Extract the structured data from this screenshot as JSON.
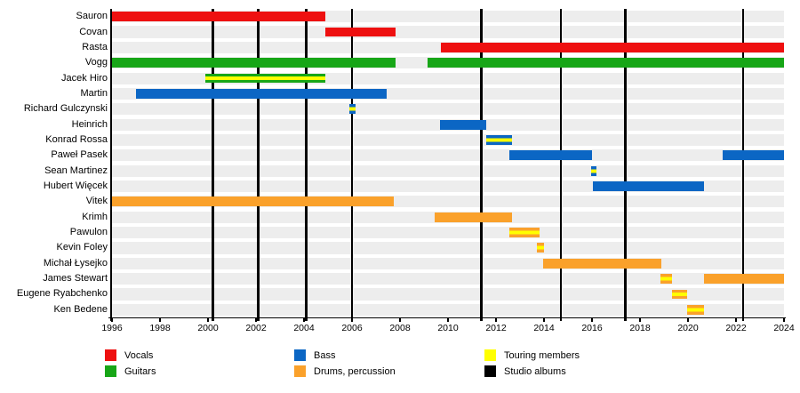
{
  "chart_data": {
    "type": "timeline",
    "description": "Band members timeline (Gantt-style), roles by color, touring members striped yellow, studio albums as vertical black lines",
    "x_axis": {
      "min": 1996,
      "max": 2024,
      "tick_interval": 2,
      "ticks": [
        1996,
        1998,
        2000,
        2002,
        2004,
        2006,
        2008,
        2010,
        2012,
        2014,
        2016,
        2018,
        2020,
        2022,
        2024
      ]
    },
    "colors": {
      "vocals": "#ee1010",
      "guitars": "#17a617",
      "bass": "#0b66c4",
      "drums": "#faa12b",
      "touring": "#ffff00",
      "albums": "#000000"
    },
    "members": [
      {
        "name": "Sauron",
        "slug": "sauron",
        "segments": [
          {
            "role": "vocals",
            "start": 1996.0,
            "end": 2004.9,
            "touring": false
          }
        ]
      },
      {
        "name": "Covan",
        "slug": "covan",
        "segments": [
          {
            "role": "vocals",
            "start": 2004.9,
            "end": 2007.8,
            "touring": false
          }
        ]
      },
      {
        "name": "Rasta",
        "slug": "rasta",
        "segments": [
          {
            "role": "vocals",
            "start": 2009.7,
            "end": 2024.0,
            "touring": false
          }
        ]
      },
      {
        "name": "Vogg",
        "slug": "vogg",
        "segments": [
          {
            "role": "guitars",
            "start": 1996.0,
            "end": 2007.8,
            "touring": false
          },
          {
            "role": "guitars",
            "start": 2009.15,
            "end": 2024.0,
            "touring": false
          }
        ]
      },
      {
        "name": "Jacek Hiro",
        "slug": "jacek-hiro",
        "segments": [
          {
            "role": "guitars",
            "start": 1999.9,
            "end": 2004.9,
            "touring": true
          }
        ]
      },
      {
        "name": "Martin",
        "slug": "martin",
        "segments": [
          {
            "role": "bass",
            "start": 1997.0,
            "end": 2007.45,
            "touring": false
          }
        ]
      },
      {
        "name": "Richard Gulczynski",
        "slug": "richard-gulczynski",
        "segments": [
          {
            "role": "bass",
            "start": 2005.9,
            "end": 2006.15,
            "touring": true
          }
        ]
      },
      {
        "name": "Heinrich",
        "slug": "heinrich",
        "segments": [
          {
            "role": "bass",
            "start": 2009.65,
            "end": 2011.6,
            "touring": false
          }
        ]
      },
      {
        "name": "Konrad Rossa",
        "slug": "konrad-rossa",
        "segments": [
          {
            "role": "bass",
            "start": 2011.6,
            "end": 2012.65,
            "touring": true
          }
        ]
      },
      {
        "name": "Paweł Pasek",
        "slug": "pawel-pasek",
        "segments": [
          {
            "role": "bass",
            "start": 2012.55,
            "end": 2016.0,
            "touring": false
          },
          {
            "role": "bass",
            "start": 2021.45,
            "end": 2024.0,
            "touring": false
          }
        ]
      },
      {
        "name": "Sean Martinez",
        "slug": "sean-martinez",
        "segments": [
          {
            "role": "bass",
            "start": 2015.95,
            "end": 2016.2,
            "touring": true
          }
        ]
      },
      {
        "name": "Hubert Więcek",
        "slug": "hubert-wiecek",
        "segments": [
          {
            "role": "bass",
            "start": 2016.05,
            "end": 2020.65,
            "touring": false
          }
        ]
      },
      {
        "name": "Vitek",
        "slug": "vitek",
        "segments": [
          {
            "role": "drums",
            "start": 1996.0,
            "end": 2007.75,
            "touring": false
          }
        ]
      },
      {
        "name": "Krimh",
        "slug": "krimh",
        "segments": [
          {
            "role": "drums",
            "start": 2009.45,
            "end": 2012.65,
            "touring": false
          }
        ]
      },
      {
        "name": "Pawulon",
        "slug": "pawulon",
        "segments": [
          {
            "role": "drums",
            "start": 2012.55,
            "end": 2013.8,
            "touring": true
          }
        ]
      },
      {
        "name": "Kevin Foley",
        "slug": "kevin-foley",
        "segments": [
          {
            "role": "drums",
            "start": 2013.7,
            "end": 2014.0,
            "touring": true
          }
        ]
      },
      {
        "name": "Michał Łysejko",
        "slug": "michal-lysejko",
        "segments": [
          {
            "role": "drums",
            "start": 2013.95,
            "end": 2018.9,
            "touring": false
          }
        ]
      },
      {
        "name": "James Stewart",
        "slug": "james-stewart",
        "segments": [
          {
            "role": "drums",
            "start": 2018.85,
            "end": 2019.35,
            "touring": true
          },
          {
            "role": "drums",
            "start": 2020.65,
            "end": 2024.0,
            "touring": false
          }
        ]
      },
      {
        "name": "Eugene Ryabchenko",
        "slug": "eugene-ryabchenko",
        "segments": [
          {
            "role": "drums",
            "start": 2019.35,
            "end": 2019.95,
            "touring": true
          }
        ]
      },
      {
        "name": "Ken Bedene",
        "slug": "ken-bedene",
        "segments": [
          {
            "role": "drums",
            "start": 2019.95,
            "end": 2020.65,
            "touring": true
          }
        ]
      }
    ],
    "studio_albums": [
      2000.2,
      2002.1,
      2004.1,
      2006.0,
      2011.4,
      2014.7,
      2017.4,
      2022.3
    ],
    "legend": [
      {
        "label": "Vocals",
        "color_key": "vocals"
      },
      {
        "label": "Guitars",
        "color_key": "guitars"
      },
      {
        "label": "Bass",
        "color_key": "bass"
      },
      {
        "label": "Drums, percussion",
        "color_key": "drums"
      },
      {
        "label": "Touring members",
        "color_key": "touring"
      },
      {
        "label": "Studio albums",
        "color_key": "albums"
      }
    ]
  }
}
